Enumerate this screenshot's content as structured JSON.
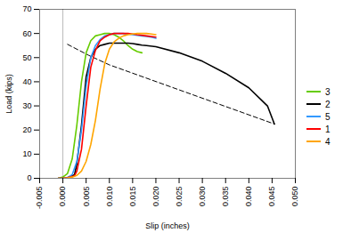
{
  "chart_data": {
    "type": "line",
    "xlabel": "Slip (inches)",
    "ylabel": "Load (kips)",
    "xlim": [
      -0.005,
      0.05
    ],
    "ylim": [
      0,
      70
    ],
    "xticks": [
      -0.005,
      {
        "value": 0.0,
        "label": "0.000"
      },
      0.005,
      {
        "value": 0.01,
        "label": "0.010"
      },
      0.015,
      {
        "value": 0.02,
        "label": "0.020"
      },
      0.025,
      {
        "value": 0.03,
        "label": "0.030"
      },
      0.035,
      {
        "value": 0.04,
        "label": "0.040"
      },
      0.045,
      {
        "value": 0.05,
        "label": "0.050"
      }
    ],
    "yticks": [
      0,
      10,
      20,
      30,
      40,
      50,
      60,
      70
    ],
    "grid": false,
    "legend": "right",
    "vlines": [
      0.0
    ],
    "series": [
      {
        "line_style": "dashed",
        "color": "black",
        "x": [
          0.001,
          0.0055,
          0.01,
          0.0455
        ],
        "values": [
          55.5,
          51.0,
          47.0,
          22.5
        ]
      },
      {
        "name": "3",
        "color": "#66cc00",
        "x": [
          -0.001,
          0.0,
          0.001,
          0.002,
          0.003,
          0.004,
          0.005,
          0.006,
          0.007,
          0.008,
          0.009,
          0.01,
          0.011,
          0.012,
          0.013,
          0.014,
          0.015,
          0.016,
          0.017
        ],
        "values": [
          0.0,
          0.5,
          2.0,
          8.0,
          22.0,
          40.0,
          52.0,
          57.0,
          59.0,
          59.5,
          60.0,
          60.0,
          59.5,
          58.5,
          57.0,
          55.0,
          53.5,
          52.5,
          52.0
        ]
      },
      {
        "name": "2",
        "color": "black",
        "x": [
          -0.001,
          0.0,
          0.001,
          0.0025,
          0.003,
          0.004,
          0.005,
          0.006,
          0.007,
          0.008,
          0.009,
          0.01,
          0.011,
          0.012,
          0.013,
          0.014,
          0.015,
          0.016,
          0.017,
          0.018,
          0.02,
          0.025,
          0.03,
          0.035,
          0.04,
          0.044,
          0.0455
        ],
        "values": [
          0.0,
          0.0,
          0.3,
          1.5,
          6.0,
          22.0,
          42.0,
          50.0,
          53.5,
          55.0,
          55.5,
          56.0,
          56.0,
          56.0,
          56.0,
          56.0,
          55.8,
          55.5,
          55.2,
          55.0,
          54.5,
          52.0,
          48.5,
          43.5,
          37.5,
          30.0,
          22.5
        ]
      },
      {
        "name": "5",
        "color": "#3399ff",
        "x": [
          -0.001,
          0.0,
          0.001,
          0.002,
          0.003,
          0.004,
          0.005,
          0.006,
          0.007,
          0.008,
          0.009,
          0.01,
          0.011,
          0.012,
          0.013,
          0.014,
          0.015,
          0.016,
          0.017,
          0.018,
          0.019,
          0.02
        ],
        "values": [
          0.0,
          0.0,
          0.3,
          1.5,
          7.0,
          20.0,
          38.0,
          50.0,
          55.0,
          57.5,
          59.0,
          59.5,
          60.0,
          60.0,
          60.0,
          59.8,
          59.5,
          59.2,
          59.0,
          58.8,
          58.5,
          58.0
        ]
      },
      {
        "name": "1",
        "color": "red",
        "x": [
          -0.001,
          0.0,
          0.001,
          0.0025,
          0.003,
          0.004,
          0.005,
          0.006,
          0.007,
          0.008,
          0.009,
          0.01,
          0.011,
          0.012,
          0.013,
          0.014,
          0.015,
          0.016,
          0.018,
          0.02
        ],
        "values": [
          0.0,
          0.0,
          0.3,
          1.0,
          3.0,
          12.0,
          30.0,
          46.0,
          53.0,
          57.0,
          58.5,
          59.5,
          60.0,
          60.0,
          60.0,
          60.0,
          59.8,
          59.5,
          59.0,
          58.5
        ]
      },
      {
        "name": "4",
        "color": "orange",
        "x": [
          -0.001,
          0.0,
          0.001,
          0.002,
          0.003,
          0.004,
          0.005,
          0.006,
          0.007,
          0.008,
          0.009,
          0.01,
          0.011,
          0.012,
          0.013,
          0.014,
          0.015,
          0.016,
          0.017,
          0.018,
          0.019,
          0.02
        ],
        "values": [
          0.0,
          0.0,
          0.2,
          0.5,
          1.2,
          3.0,
          7.0,
          14.0,
          24.0,
          37.0,
          47.5,
          53.5,
          56.5,
          58.0,
          59.0,
          59.5,
          59.8,
          60.0,
          60.0,
          60.0,
          59.8,
          59.5
        ]
      }
    ]
  }
}
